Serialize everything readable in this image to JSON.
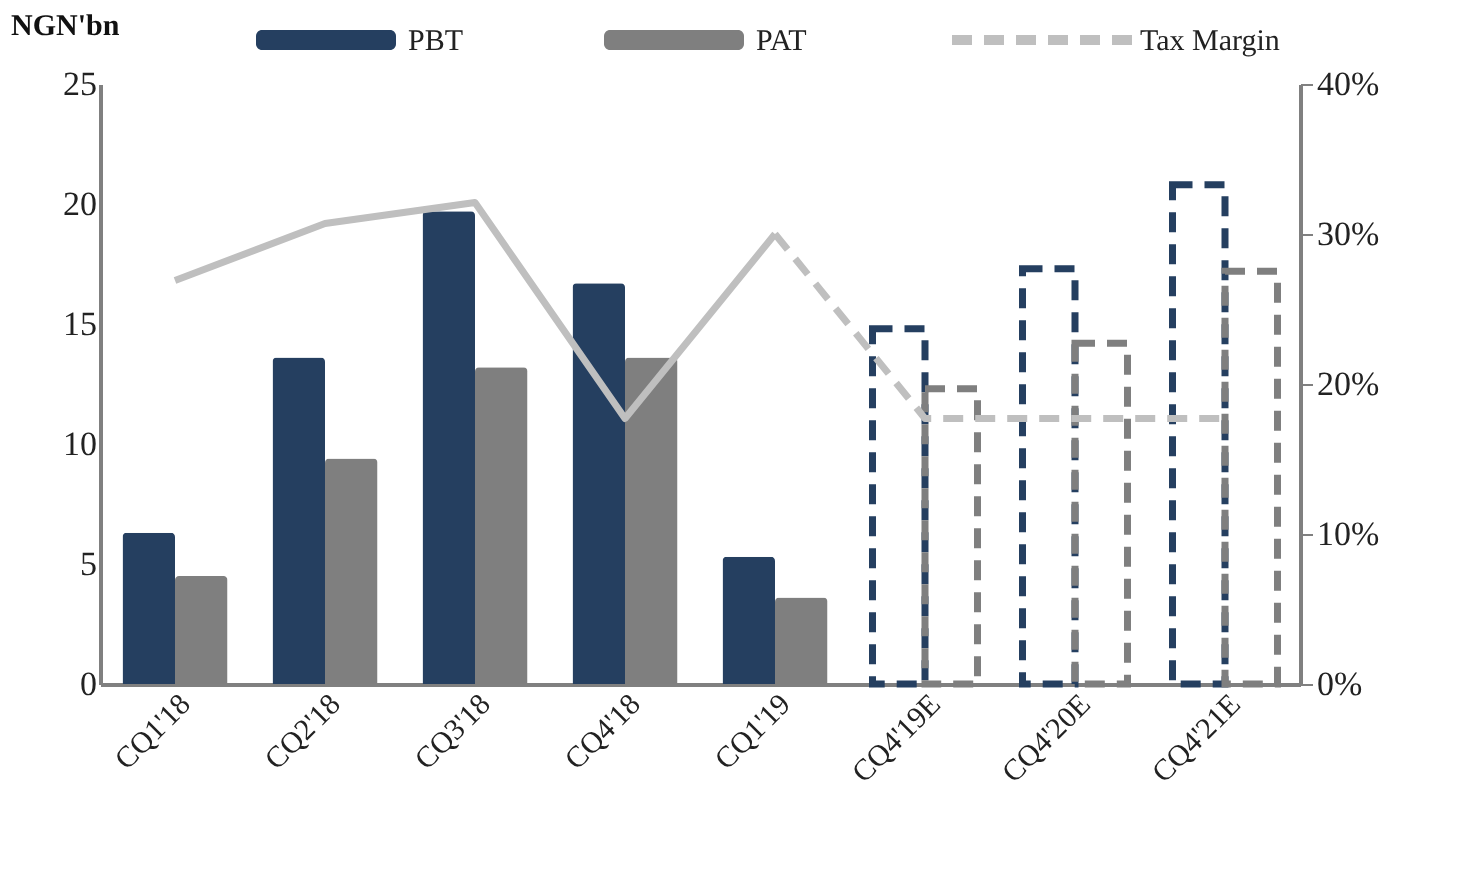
{
  "chart_data": {
    "type": "bar",
    "ylabel": "NGN'bn",
    "categories": [
      "CQ1'18",
      "CQ2'18",
      "CQ3'18",
      "CQ4'18",
      "CQ1'19",
      "CQ4'19E",
      "CQ4'20E",
      "CQ4'21E"
    ],
    "series": [
      {
        "name": "PBT",
        "color": "#253f60",
        "values": [
          6.3,
          13.6,
          19.7,
          16.7,
          5.3,
          null,
          null,
          null
        ]
      },
      {
        "color": "#253f60",
        "line_style": "dashed",
        "values": [
          null,
          null,
          null,
          null,
          null,
          14.8,
          17.3,
          20.8
        ]
      },
      {
        "name": "PAT",
        "color": "#7f7f7f",
        "values": [
          4.5,
          9.4,
          13.2,
          13.6,
          3.6,
          null,
          null,
          null
        ]
      },
      {
        "color": "#7f7f7f",
        "line_style": "dashed",
        "values": [
          null,
          null,
          null,
          null,
          null,
          12.3,
          14.2,
          17.2
        ]
      },
      {
        "type": "line",
        "axis": "y2",
        "color": "#bfbfbf",
        "line_style": "solid",
        "values": [
          26.9,
          30.7,
          32.1,
          17.7,
          30.0,
          null,
          null,
          null
        ]
      },
      {
        "name": "Tax Margin",
        "type": "line",
        "axis": "y2",
        "color": "#bfbfbf",
        "line_style": "dashed",
        "values": [
          null,
          null,
          null,
          null,
          30.0,
          17.7,
          17.7,
          17.7
        ]
      }
    ],
    "ylim": [
      0,
      25
    ],
    "yticks": [
      0,
      5,
      10,
      15,
      20,
      25
    ],
    "y2lim": [
      0,
      40
    ],
    "y2ticks": [
      {
        "value": 0,
        "label": "0%"
      },
      {
        "value": 10,
        "label": "10%"
      },
      {
        "value": 20,
        "label": "20%"
      },
      {
        "value": 30,
        "label": "30%"
      },
      {
        "value": 40,
        "label": "40%"
      }
    ],
    "grid": false,
    "legend": "top"
  }
}
